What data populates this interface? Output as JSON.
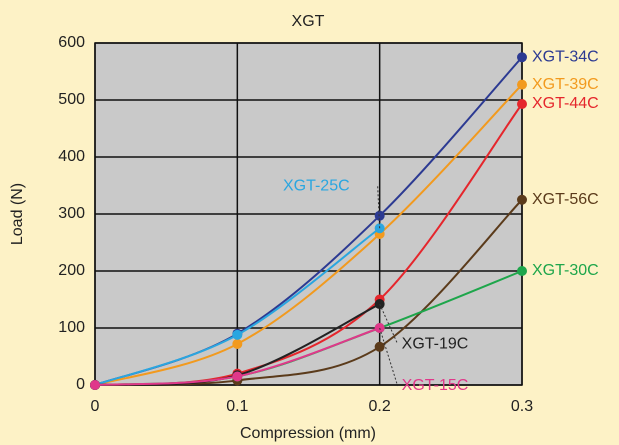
{
  "chart_data": {
    "type": "line",
    "title": "XGT",
    "xlabel": "Compression (mm)",
    "ylabel": "Load (N)",
    "x": [
      0,
      0.1,
      0.2,
      0.3
    ],
    "xlim": [
      0,
      0.3
    ],
    "xticks": [
      0,
      0.1,
      0.2,
      0.3
    ],
    "ylim": [
      0,
      600
    ],
    "yticks": [
      0,
      100,
      200,
      300,
      400,
      500,
      600
    ],
    "grid": true,
    "series": [
      {
        "name": "XGT-34C",
        "color": "#2c3a92",
        "values": [
          0,
          90,
          297,
          575
        ]
      },
      {
        "name": "XGT-39C",
        "color": "#f29a1e",
        "values": [
          0,
          72,
          265,
          527
        ]
      },
      {
        "name": "XGT-44C",
        "color": "#e5262c",
        "values": [
          0,
          20,
          150,
          493
        ]
      },
      {
        "name": "XGT-56C",
        "color": "#5b3b1b",
        "values": [
          0,
          8,
          67,
          325
        ]
      },
      {
        "name": "XGT-30C",
        "color": "#1ea64b",
        "values": [
          0,
          15,
          100,
          200
        ]
      },
      {
        "name": "XGT-25C",
        "color": "#2aa6e0",
        "values": [
          0,
          88,
          275,
          null
        ]
      },
      {
        "name": "XGT-19C",
        "color": "#222222",
        "values": [
          0,
          17,
          142,
          null
        ]
      },
      {
        "name": "XGT-15C",
        "color": "#e0388a",
        "values": [
          0,
          15,
          100,
          null
        ]
      }
    ]
  }
}
